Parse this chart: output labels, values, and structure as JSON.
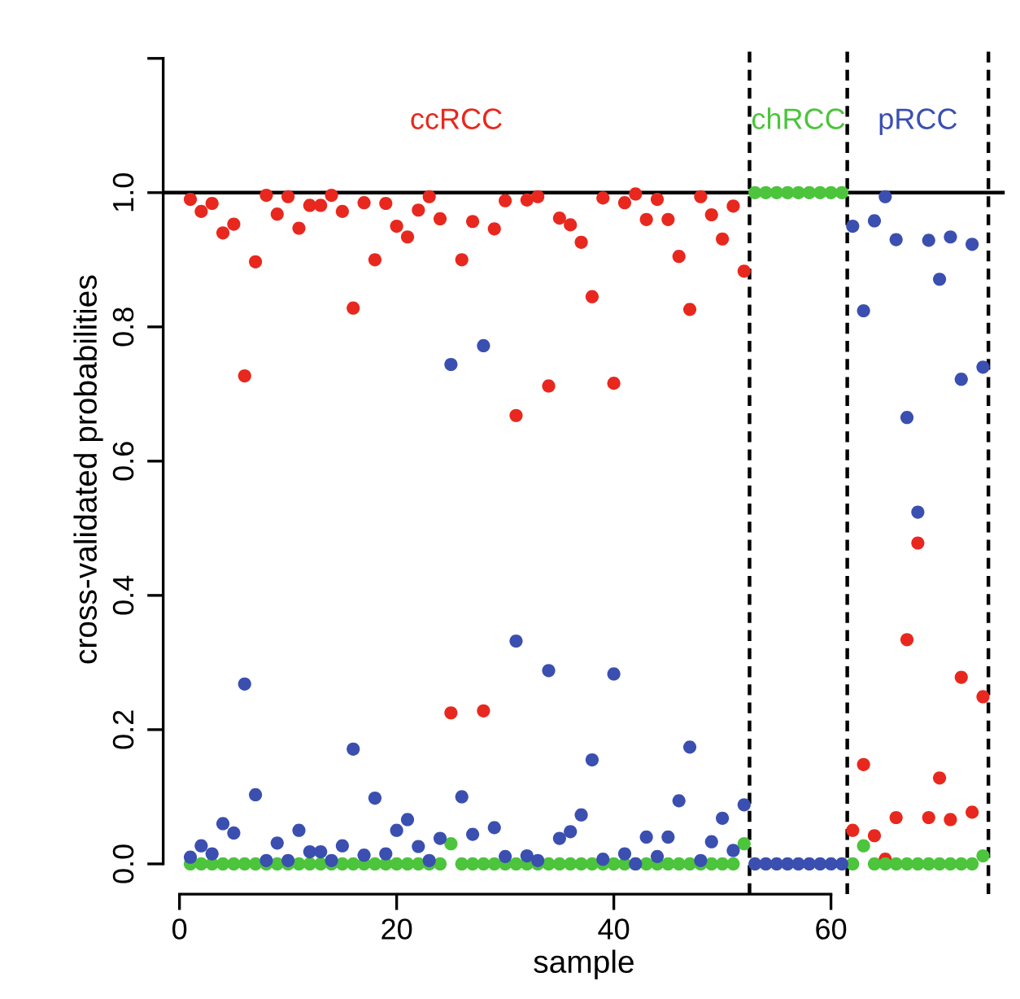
{
  "chart_data": {
    "type": "scatter",
    "xlabel": "sample",
    "ylabel": "cross-validated probabilities",
    "x": [
      1,
      2,
      3,
      4,
      5,
      6,
      7,
      8,
      9,
      10,
      11,
      12,
      13,
      14,
      15,
      16,
      17,
      18,
      19,
      20,
      21,
      22,
      23,
      24,
      25,
      26,
      27,
      28,
      29,
      30,
      31,
      32,
      33,
      34,
      35,
      36,
      37,
      38,
      39,
      40,
      41,
      42,
      43,
      44,
      45,
      46,
      47,
      48,
      49,
      50,
      51,
      52,
      53,
      54,
      55,
      56,
      57,
      58,
      59,
      60,
      61,
      62,
      63,
      64,
      65,
      66,
      67,
      68,
      69,
      70,
      71,
      72,
      73,
      74
    ],
    "series": [
      {
        "name": "ccRCC",
        "color": "#e8281e",
        "values": [
          0.99,
          0.972,
          0.984,
          0.94,
          0.953,
          0.727,
          0.897,
          0.996,
          0.968,
          0.994,
          0.947,
          0.981,
          0.981,
          0.996,
          0.972,
          0.828,
          0.985,
          0.9,
          0.984,
          0.95,
          0.934,
          0.974,
          0.994,
          0.961,
          0.225,
          0.9,
          0.957,
          0.228,
          0.946,
          0.988,
          0.668,
          0.989,
          0.994,
          0.712,
          0.962,
          0.952,
          0.926,
          0.845,
          0.992,
          0.716,
          0.985,
          0.998,
          0.96,
          0.99,
          0.96,
          0.905,
          0.826,
          0.994,
          0.967,
          0.931,
          0.98,
          0.883,
          null,
          null,
          null,
          null,
          null,
          null,
          null,
          null,
          null,
          0.05,
          0.148,
          0.042,
          0.007,
          0.069,
          0.334,
          0.478,
          0.069,
          0.128,
          0.066,
          0.278,
          0.077,
          0.249
        ]
      },
      {
        "name": "chRCC",
        "color": "#4cc43c",
        "values": [
          0.0,
          0.0,
          0.0,
          0.0,
          0.0,
          0.0,
          0.0,
          0.0,
          0.0,
          0.0,
          0.0,
          0.0,
          0.0,
          0.0,
          0.0,
          0.0,
          0.0,
          0.0,
          0.0,
          0.0,
          0.0,
          0.0,
          0.0,
          0.0,
          0.03,
          0.0,
          0.0,
          0.0,
          0.0,
          0.0,
          0.0,
          0.0,
          0.0,
          0.0,
          0.0,
          0.0,
          0.0,
          0.0,
          0.0,
          0.0,
          0.0,
          0.0,
          0.0,
          0.0,
          0.0,
          0.0,
          0.0,
          0.0,
          0.0,
          0.0,
          0.0,
          0.03,
          1.0,
          1.0,
          1.0,
          1.0,
          1.0,
          1.0,
          1.0,
          1.0,
          1.0,
          0.0,
          0.027,
          0.0,
          0.0,
          0.0,
          0.0,
          0.0,
          0.0,
          0.0,
          0.0,
          0.0,
          0.0,
          0.012
        ]
      },
      {
        "name": "pRCC",
        "color": "#3a4fb0",
        "values": [
          0.01,
          0.027,
          0.015,
          0.06,
          0.046,
          0.268,
          0.103,
          0.005,
          0.031,
          0.005,
          0.05,
          0.018,
          0.018,
          0.005,
          0.027,
          0.171,
          0.013,
          0.098,
          0.015,
          0.05,
          0.066,
          0.026,
          0.005,
          0.038,
          0.744,
          0.1,
          0.044,
          0.772,
          0.054,
          0.011,
          0.332,
          0.012,
          0.005,
          0.288,
          0.038,
          0.048,
          0.073,
          0.155,
          0.007,
          0.283,
          0.015,
          0.0,
          0.04,
          0.011,
          0.04,
          0.094,
          0.174,
          0.005,
          0.033,
          0.068,
          0.02,
          0.088,
          0.0,
          0.0,
          0.0,
          0.0,
          0.0,
          0.0,
          0.0,
          0.0,
          0.0,
          0.95,
          0.824,
          0.958,
          0.994,
          0.93,
          0.665,
          0.524,
          0.929,
          0.871,
          0.934,
          0.722,
          0.923,
          0.74
        ]
      }
    ],
    "xlim": [
      -1.5,
      76
    ],
    "xticks": [
      0,
      20,
      40,
      60
    ],
    "ylim": [
      -0.045,
      1.22
    ],
    "yticks": [
      {
        "value": 0,
        "label": "0.0"
      },
      {
        "value": 0.2,
        "label": "0.2"
      },
      {
        "value": 0.4,
        "label": "0.4"
      },
      {
        "value": 0.6,
        "label": "0.6"
      },
      {
        "value": 0.8,
        "label": "0.8"
      },
      {
        "value": 1.0,
        "label": "1.0"
      },
      {
        "value": 1.2,
        "label": null
      }
    ],
    "marker": "circle",
    "ref_lines": [
      {
        "axis": "y",
        "value": 1.0,
        "color": "#000000",
        "line_style": "solid"
      },
      {
        "axis": "x",
        "value": 52.5,
        "color": "#000000",
        "line_style": "dashed"
      },
      {
        "axis": "x",
        "value": 61.5,
        "color": "#000000",
        "line_style": "dashed"
      },
      {
        "axis": "x",
        "value": 74.5,
        "color": "#000000",
        "line_style": "dashed"
      }
    ]
  }
}
